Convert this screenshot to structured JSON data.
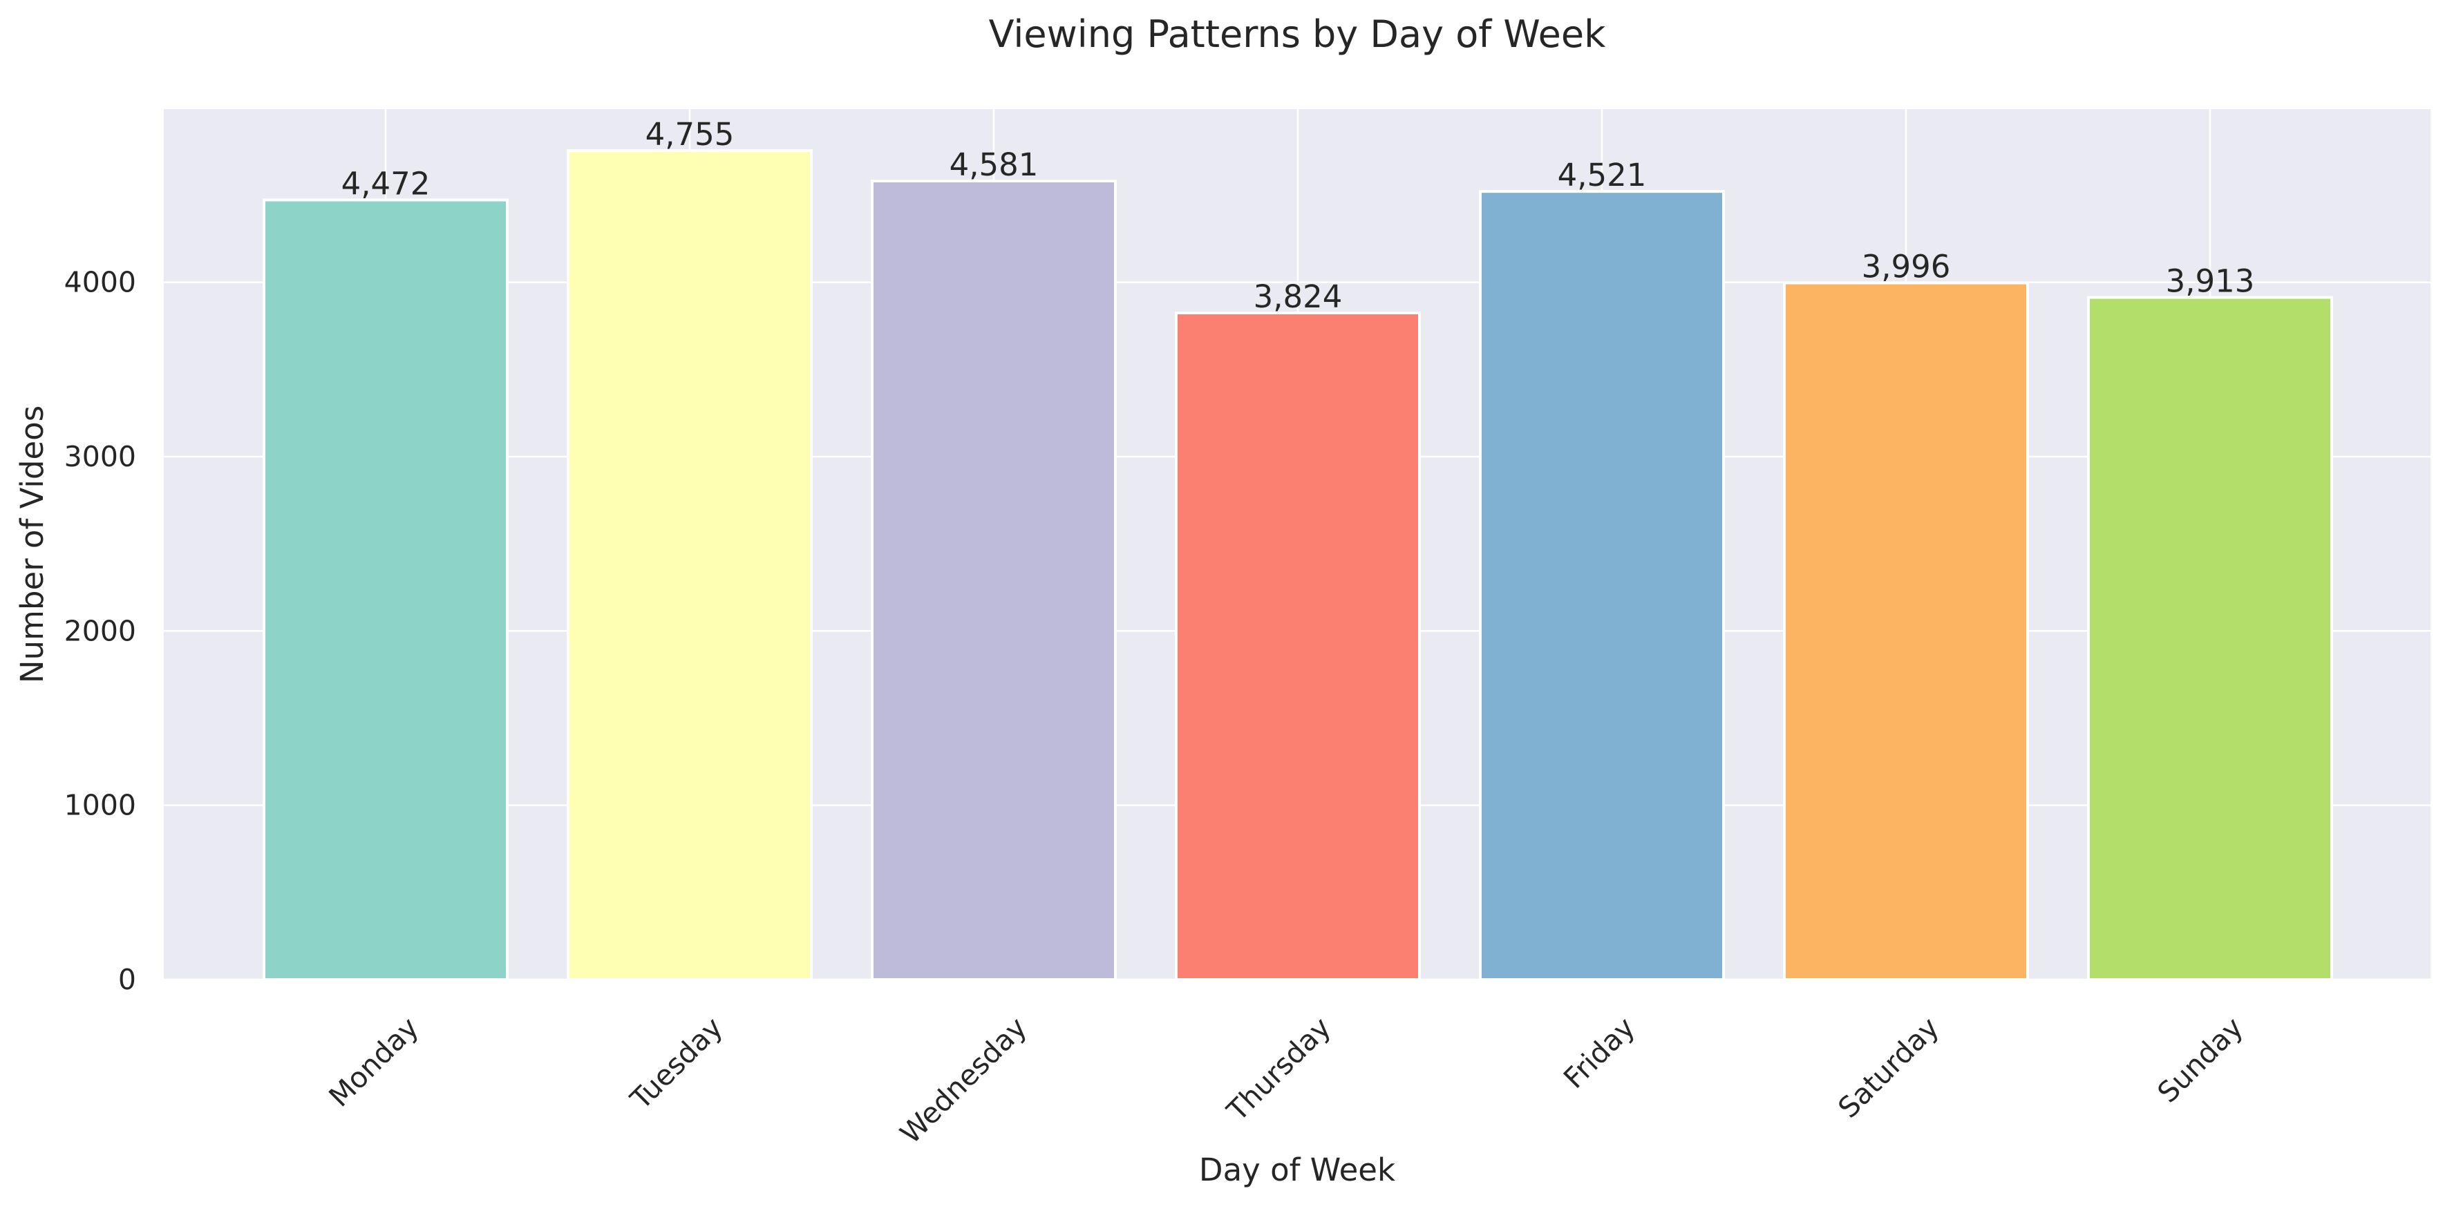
{
  "chart_data": {
    "type": "bar",
    "title": "Viewing Patterns by Day of Week",
    "xlabel": "Day of Week",
    "ylabel": "Number of Videos",
    "categories": [
      "Monday",
      "Tuesday",
      "Wednesday",
      "Thursday",
      "Friday",
      "Saturday",
      "Sunday"
    ],
    "values": [
      4472,
      4755,
      4581,
      3824,
      4521,
      3996,
      3913
    ],
    "value_labels": [
      "4,472",
      "4,755",
      "4,581",
      "3,824",
      "4,521",
      "3,996",
      "3,913"
    ],
    "colors": [
      "#8dd3c7",
      "#ffffb3",
      "#bebada",
      "#fb8072",
      "#80b1d3",
      "#fdb462",
      "#b3de69"
    ],
    "ylim": [
      0,
      4993
    ],
    "yticks": [
      0,
      1000,
      2000,
      3000,
      4000
    ],
    "ytick_labels": [
      "0",
      "1000",
      "2000",
      "3000",
      "4000"
    ],
    "grid": true,
    "legend": "none",
    "background_color": "#eaeaf2"
  }
}
